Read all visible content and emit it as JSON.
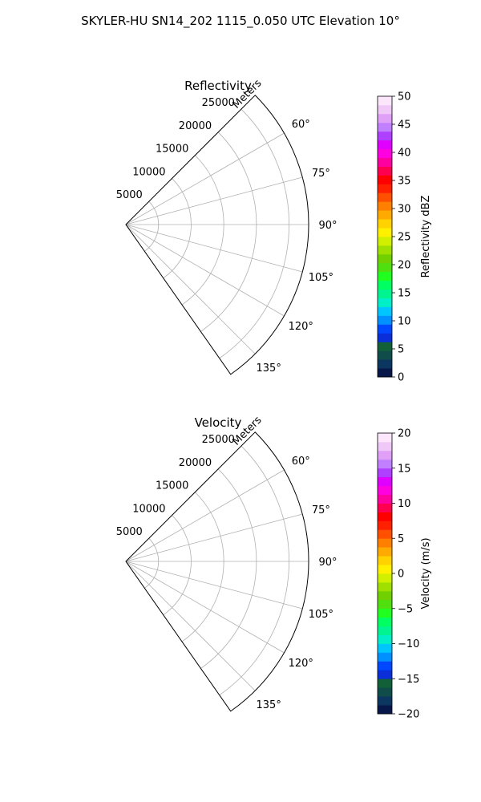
{
  "figure": {
    "suptitle": "SKYLER-HU  SN14_202  1115_0.050 UTC Elevation 10°"
  },
  "chart_data": [
    {
      "type": "heatmap",
      "title": "Reflectivity",
      "range_label": "Meters",
      "range_ticks": [
        5000,
        10000,
        15000,
        20000,
        25000
      ],
      "range_tick_labels": [
        "5000",
        "10000",
        "15000",
        "20000",
        "25000"
      ],
      "rlim": [
        0,
        28000
      ],
      "azimuth_ticks": [
        60,
        75,
        90,
        105,
        120,
        135
      ],
      "azimuth_tick_labels": [
        "60°",
        "75°",
        "90°",
        "105°",
        "120°",
        "135°"
      ],
      "theta_lim_deg": [
        45,
        145
      ],
      "grid": true,
      "colorbar": {
        "label": "Reflectivity dBZ",
        "vmin": 0,
        "vmax": 50,
        "ticks": [
          0,
          5,
          10,
          15,
          20,
          25,
          30,
          35,
          40,
          45,
          50
        ],
        "tick_labels": [
          "0",
          "5",
          "10",
          "15",
          "20",
          "25",
          "30",
          "35",
          "40",
          "45",
          "50"
        ],
        "colors": [
          "#08174a",
          "#0b3660",
          "#0f4c4a",
          "#126038",
          "#0a2fd8",
          "#0048ff",
          "#0090ff",
          "#00c6ff",
          "#00eec8",
          "#00f590",
          "#00ff60",
          "#20ff20",
          "#50e010",
          "#70d000",
          "#a0e000",
          "#d0f000",
          "#fff000",
          "#ffd200",
          "#ffaa00",
          "#ff8000",
          "#ff5000",
          "#ff2000",
          "#ff0000",
          "#ff0050",
          "#ff00a0",
          "#ff00e0",
          "#e000ff",
          "#b040ff",
          "#c080ff",
          "#e0a0f8",
          "#f0c8f8",
          "#fbe6fb"
        ]
      }
    },
    {
      "type": "heatmap",
      "title": "Velocity",
      "range_label": "Meters",
      "range_ticks": [
        5000,
        10000,
        15000,
        20000,
        25000
      ],
      "range_tick_labels": [
        "5000",
        "10000",
        "15000",
        "20000",
        "25000"
      ],
      "rlim": [
        0,
        28000
      ],
      "azimuth_ticks": [
        60,
        75,
        90,
        105,
        120,
        135
      ],
      "azimuth_tick_labels": [
        "60°",
        "75°",
        "90°",
        "105°",
        "120°",
        "135°"
      ],
      "theta_lim_deg": [
        45,
        145
      ],
      "grid": true,
      "colorbar": {
        "label": "Velocity (m/s)",
        "vmin": -20,
        "vmax": 20,
        "ticks": [
          -20,
          -15,
          -10,
          -5,
          0,
          5,
          10,
          15,
          20
        ],
        "tick_labels": [
          "−20",
          "−15",
          "−10",
          "−5",
          "0",
          "5",
          "10",
          "15",
          "20"
        ],
        "colors": [
          "#08174a",
          "#0b3660",
          "#0f4c4a",
          "#126038",
          "#0a2fd8",
          "#0048ff",
          "#0090ff",
          "#00c6ff",
          "#00eec8",
          "#00f590",
          "#00ff60",
          "#20ff20",
          "#50e010",
          "#70d000",
          "#a0e000",
          "#d0f000",
          "#fff000",
          "#ffd200",
          "#ffaa00",
          "#ff8000",
          "#ff5000",
          "#ff2000",
          "#ff0000",
          "#ff0050",
          "#ff00a0",
          "#ff00e0",
          "#e000ff",
          "#b040ff",
          "#c080ff",
          "#e0a0f8",
          "#f0c8f8",
          "#fbe6fb"
        ]
      }
    }
  ]
}
